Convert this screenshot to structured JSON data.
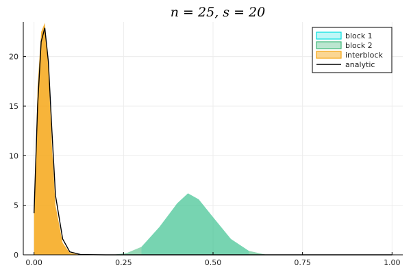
{
  "chart_data": {
    "type": "area",
    "title": "n = 25, s = 20",
    "xlabel": "",
    "ylabel": "",
    "xlim": [
      -0.03,
      1.03
    ],
    "ylim": [
      0,
      23.5
    ],
    "x_ticks": [
      0.0,
      0.25,
      0.5,
      0.75,
      1.0
    ],
    "x_tick_labels": [
      "0.00",
      "0.25",
      "0.50",
      "0.75",
      "1.00"
    ],
    "y_ticks": [
      0,
      5,
      10,
      15,
      20
    ],
    "y_tick_labels": [
      "0",
      "5",
      "10",
      "15",
      "20"
    ],
    "grid": true,
    "legend_position": "top-right",
    "series": [
      {
        "name": "block 1",
        "kind": "histogram",
        "color": "#00e0e0",
        "x": [
          0.3,
          0.35,
          0.4,
          0.43,
          0.46,
          0.5,
          0.55,
          0.6
        ],
        "y": [
          0.8,
          2.8,
          5.2,
          6.2,
          5.6,
          3.8,
          1.6,
          0.4
        ]
      },
      {
        "name": "block 2",
        "kind": "histogram",
        "color": "#3cb878",
        "x": [
          0.22,
          0.26,
          0.3,
          0.35,
          0.4,
          0.43,
          0.46,
          0.5,
          0.55,
          0.6,
          0.65
        ],
        "y": [
          0.0,
          0.2,
          0.8,
          2.8,
          5.2,
          6.2,
          5.6,
          3.8,
          1.6,
          0.4,
          0.0
        ]
      },
      {
        "name": "interblock",
        "kind": "histogram",
        "color": "#f5a30f",
        "x": [
          0.0,
          0.005,
          0.01,
          0.02,
          0.03,
          0.04,
          0.05,
          0.06,
          0.08,
          0.1,
          0.13
        ],
        "y": [
          4.5,
          10.0,
          17.0,
          22.5,
          23.4,
          19.0,
          11.0,
          5.0,
          1.2,
          0.2,
          0.0
        ]
      },
      {
        "name": "analytic",
        "kind": "line",
        "color": "#000000",
        "x": [
          0.0,
          0.01,
          0.02,
          0.03,
          0.04,
          0.05,
          0.06,
          0.08,
          0.1,
          0.13,
          0.2,
          0.4,
          0.6,
          0.8,
          1.0
        ],
        "y": [
          4.2,
          15.0,
          21.5,
          22.9,
          19.5,
          12.5,
          6.0,
          1.6,
          0.3,
          0.03,
          0.0,
          0.0,
          0.0,
          0.0,
          0.0
        ]
      }
    ]
  }
}
